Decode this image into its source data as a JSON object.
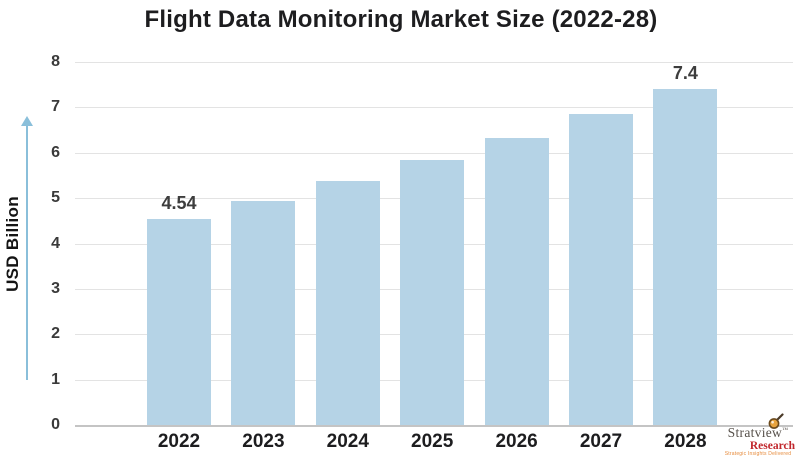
{
  "page": {
    "background": "#ffffff"
  },
  "chart_data": {
    "type": "bar",
    "title": "Flight Data Monitoring Market Size (2022-28)",
    "xlabel": "",
    "ylabel": "USD Billion",
    "categories": [
      "2022",
      "2023",
      "2024",
      "2025",
      "2026",
      "2027",
      "2028"
    ],
    "values": [
      4.54,
      4.93,
      5.37,
      5.83,
      6.33,
      6.85,
      7.4
    ],
    "bar_labels": [
      "4.54",
      "",
      "",
      "",
      "",
      "",
      "7.4"
    ],
    "ylim": [
      0,
      8
    ],
    "ytick_interval": 1,
    "yticks": [
      0,
      1,
      2,
      3,
      4,
      5,
      6,
      7,
      8
    ],
    "grid": "horizontal",
    "legend_position": "none",
    "colors": {
      "bar": "#b5d3e6",
      "title": "#1d1d1f",
      "tick_label": "#3a3a3a",
      "category_label": "#1d1d1f",
      "bar_label": "#3d3d3d",
      "gridline": "#e3e3e3",
      "axis_line": "#c4c4c4",
      "axis_arrow": "#8abfda"
    }
  },
  "branding": {
    "logo_name": "Stratview",
    "logo_tm": "™",
    "logo_sub": "Research",
    "logo_tagline": "Strategic Insights Delivered",
    "colors": {
      "name": "#57514b",
      "sub": "#c1272d",
      "tagline": "#e68a3a",
      "lens_fill": "#e8a33d",
      "lens_rim": "#6b4a1d",
      "handle": "#4a3a28"
    }
  }
}
